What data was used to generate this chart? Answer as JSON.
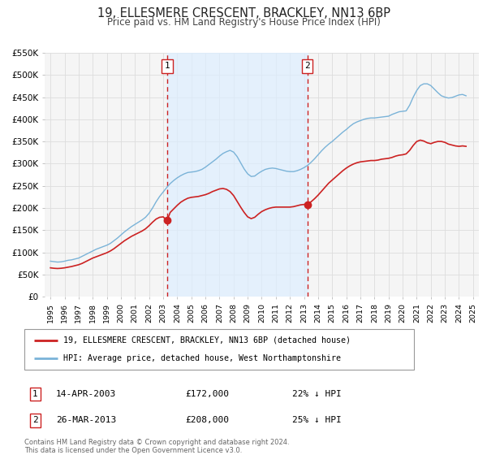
{
  "title": "19, ELLESMERE CRESCENT, BRACKLEY, NN13 6BP",
  "subtitle": "Price paid vs. HM Land Registry's House Price Index (HPI)",
  "hpi_color": "#7ab3d8",
  "price_color": "#cc2222",
  "bg_color": "#ffffff",
  "plot_bg_color": "#f5f5f5",
  "grid_color": "#dddddd",
  "span_color": "#ddeeff",
  "ylim": [
    0,
    550000
  ],
  "yticks": [
    0,
    50000,
    100000,
    150000,
    200000,
    250000,
    300000,
    350000,
    400000,
    450000,
    500000,
    550000
  ],
  "ytick_labels": [
    "£0",
    "£50K",
    "£100K",
    "£150K",
    "£200K",
    "£250K",
    "£300K",
    "£350K",
    "£400K",
    "£450K",
    "£500K",
    "£550K"
  ],
  "xlim_start": 1994.6,
  "xlim_end": 2025.4,
  "transaction1": {
    "label": "1",
    "date": "14-APR-2003",
    "price": 172000,
    "year": 2003.28,
    "hpi_pct": "22%"
  },
  "transaction2": {
    "label": "2",
    "date": "26-MAR-2013",
    "price": 208000,
    "year": 2013.23,
    "hpi_pct": "25%"
  },
  "legend_label1": "19, ELLESMERE CRESCENT, BRACKLEY, NN13 6BP (detached house)",
  "legend_label2": "HPI: Average price, detached house, West Northamptonshire",
  "footer": "Contains HM Land Registry data © Crown copyright and database right 2024.\nThis data is licensed under the Open Government Licence v3.0.",
  "hpi_data": [
    [
      1995.0,
      80000
    ],
    [
      1995.25,
      79000
    ],
    [
      1995.5,
      78000
    ],
    [
      1995.75,
      78500
    ],
    [
      1996.0,
      80000
    ],
    [
      1996.25,
      82000
    ],
    [
      1996.5,
      83000
    ],
    [
      1996.75,
      85000
    ],
    [
      1997.0,
      87000
    ],
    [
      1997.25,
      91000
    ],
    [
      1997.5,
      95000
    ],
    [
      1997.75,
      99000
    ],
    [
      1998.0,
      103000
    ],
    [
      1998.25,
      107000
    ],
    [
      1998.5,
      110000
    ],
    [
      1998.75,
      113000
    ],
    [
      1999.0,
      116000
    ],
    [
      1999.25,
      120000
    ],
    [
      1999.5,
      126000
    ],
    [
      1999.75,
      132000
    ],
    [
      2000.0,
      139000
    ],
    [
      2000.25,
      146000
    ],
    [
      2000.5,
      152000
    ],
    [
      2000.75,
      158000
    ],
    [
      2001.0,
      163000
    ],
    [
      2001.25,
      168000
    ],
    [
      2001.5,
      173000
    ],
    [
      2001.75,
      179000
    ],
    [
      2002.0,
      188000
    ],
    [
      2002.25,
      200000
    ],
    [
      2002.5,
      214000
    ],
    [
      2002.75,
      226000
    ],
    [
      2003.0,
      236000
    ],
    [
      2003.25,
      246000
    ],
    [
      2003.5,
      255000
    ],
    [
      2003.75,
      262000
    ],
    [
      2004.0,
      268000
    ],
    [
      2004.25,
      273000
    ],
    [
      2004.5,
      277000
    ],
    [
      2004.75,
      280000
    ],
    [
      2005.0,
      281000
    ],
    [
      2005.25,
      282000
    ],
    [
      2005.5,
      284000
    ],
    [
      2005.75,
      287000
    ],
    [
      2006.0,
      292000
    ],
    [
      2006.25,
      298000
    ],
    [
      2006.5,
      304000
    ],
    [
      2006.75,
      310000
    ],
    [
      2007.0,
      317000
    ],
    [
      2007.25,
      323000
    ],
    [
      2007.5,
      327000
    ],
    [
      2007.75,
      330000
    ],
    [
      2008.0,
      326000
    ],
    [
      2008.25,
      316000
    ],
    [
      2008.5,
      302000
    ],
    [
      2008.75,
      288000
    ],
    [
      2009.0,
      277000
    ],
    [
      2009.25,
      271000
    ],
    [
      2009.5,
      272000
    ],
    [
      2009.75,
      278000
    ],
    [
      2010.0,
      283000
    ],
    [
      2010.25,
      287000
    ],
    [
      2010.5,
      289000
    ],
    [
      2010.75,
      290000
    ],
    [
      2011.0,
      289000
    ],
    [
      2011.25,
      287000
    ],
    [
      2011.5,
      285000
    ],
    [
      2011.75,
      283000
    ],
    [
      2012.0,
      282000
    ],
    [
      2012.25,
      282000
    ],
    [
      2012.5,
      284000
    ],
    [
      2012.75,
      287000
    ],
    [
      2013.0,
      291000
    ],
    [
      2013.25,
      296000
    ],
    [
      2013.5,
      303000
    ],
    [
      2013.75,
      311000
    ],
    [
      2014.0,
      320000
    ],
    [
      2014.25,
      329000
    ],
    [
      2014.5,
      337000
    ],
    [
      2014.75,
      344000
    ],
    [
      2015.0,
      350000
    ],
    [
      2015.25,
      357000
    ],
    [
      2015.5,
      364000
    ],
    [
      2015.75,
      371000
    ],
    [
      2016.0,
      377000
    ],
    [
      2016.25,
      384000
    ],
    [
      2016.5,
      390000
    ],
    [
      2016.75,
      394000
    ],
    [
      2017.0,
      397000
    ],
    [
      2017.25,
      400000
    ],
    [
      2017.5,
      402000
    ],
    [
      2017.75,
      403000
    ],
    [
      2018.0,
      403000
    ],
    [
      2018.25,
      404000
    ],
    [
      2018.5,
      405000
    ],
    [
      2018.75,
      406000
    ],
    [
      2019.0,
      407000
    ],
    [
      2019.25,
      411000
    ],
    [
      2019.5,
      414000
    ],
    [
      2019.75,
      417000
    ],
    [
      2020.0,
      418000
    ],
    [
      2020.25,
      419000
    ],
    [
      2020.5,
      432000
    ],
    [
      2020.75,
      450000
    ],
    [
      2021.0,
      465000
    ],
    [
      2021.25,
      476000
    ],
    [
      2021.5,
      480000
    ],
    [
      2021.75,
      480000
    ],
    [
      2022.0,
      476000
    ],
    [
      2022.25,
      468000
    ],
    [
      2022.5,
      460000
    ],
    [
      2022.75,
      453000
    ],
    [
      2023.0,
      450000
    ],
    [
      2023.25,
      448000
    ],
    [
      2023.5,
      449000
    ],
    [
      2023.75,
      452000
    ],
    [
      2024.0,
      455000
    ],
    [
      2024.25,
      456000
    ],
    [
      2024.5,
      453000
    ]
  ],
  "price_data": [
    [
      1995.0,
      65000
    ],
    [
      1995.25,
      64000
    ],
    [
      1995.5,
      63500
    ],
    [
      1995.75,
      64000
    ],
    [
      1996.0,
      65000
    ],
    [
      1996.25,
      66500
    ],
    [
      1996.5,
      68000
    ],
    [
      1996.75,
      70000
    ],
    [
      1997.0,
      72000
    ],
    [
      1997.25,
      75000
    ],
    [
      1997.5,
      79000
    ],
    [
      1997.75,
      83000
    ],
    [
      1998.0,
      87000
    ],
    [
      1998.25,
      90000
    ],
    [
      1998.5,
      93000
    ],
    [
      1998.75,
      96000
    ],
    [
      1999.0,
      99000
    ],
    [
      1999.25,
      103000
    ],
    [
      1999.5,
      108000
    ],
    [
      1999.75,
      114000
    ],
    [
      2000.0,
      120000
    ],
    [
      2000.25,
      126000
    ],
    [
      2000.5,
      131000
    ],
    [
      2000.75,
      136000
    ],
    [
      2001.0,
      140000
    ],
    [
      2001.25,
      144000
    ],
    [
      2001.5,
      148000
    ],
    [
      2001.75,
      153000
    ],
    [
      2002.0,
      160000
    ],
    [
      2002.25,
      168000
    ],
    [
      2002.5,
      175000
    ],
    [
      2002.75,
      179000
    ],
    [
      2003.0,
      180000
    ],
    [
      2003.28,
      172000
    ],
    [
      2003.5,
      190000
    ],
    [
      2003.75,
      198000
    ],
    [
      2004.0,
      206000
    ],
    [
      2004.25,
      213000
    ],
    [
      2004.5,
      218000
    ],
    [
      2004.75,
      222000
    ],
    [
      2005.0,
      224000
    ],
    [
      2005.25,
      225000
    ],
    [
      2005.5,
      226000
    ],
    [
      2005.75,
      228000
    ],
    [
      2006.0,
      230000
    ],
    [
      2006.25,
      233000
    ],
    [
      2006.5,
      237000
    ],
    [
      2006.75,
      240000
    ],
    [
      2007.0,
      243000
    ],
    [
      2007.25,
      244000
    ],
    [
      2007.5,
      242000
    ],
    [
      2007.75,
      237000
    ],
    [
      2008.0,
      228000
    ],
    [
      2008.25,
      215000
    ],
    [
      2008.5,
      202000
    ],
    [
      2008.75,
      190000
    ],
    [
      2009.0,
      180000
    ],
    [
      2009.25,
      176000
    ],
    [
      2009.5,
      179000
    ],
    [
      2009.75,
      186000
    ],
    [
      2010.0,
      192000
    ],
    [
      2010.25,
      196000
    ],
    [
      2010.5,
      199000
    ],
    [
      2010.75,
      201000
    ],
    [
      2011.0,
      202000
    ],
    [
      2011.25,
      202000
    ],
    [
      2011.5,
      202000
    ],
    [
      2011.75,
      202000
    ],
    [
      2012.0,
      202000
    ],
    [
      2012.25,
      203000
    ],
    [
      2012.5,
      205000
    ],
    [
      2012.75,
      207000
    ],
    [
      2013.0,
      208000
    ],
    [
      2013.23,
      208000
    ],
    [
      2013.5,
      214000
    ],
    [
      2013.75,
      221000
    ],
    [
      2014.0,
      229000
    ],
    [
      2014.25,
      238000
    ],
    [
      2014.5,
      247000
    ],
    [
      2014.75,
      256000
    ],
    [
      2015.0,
      263000
    ],
    [
      2015.25,
      270000
    ],
    [
      2015.5,
      277000
    ],
    [
      2015.75,
      284000
    ],
    [
      2016.0,
      290000
    ],
    [
      2016.25,
      295000
    ],
    [
      2016.5,
      299000
    ],
    [
      2016.75,
      302000
    ],
    [
      2017.0,
      304000
    ],
    [
      2017.25,
      305000
    ],
    [
      2017.5,
      306000
    ],
    [
      2017.75,
      307000
    ],
    [
      2018.0,
      307000
    ],
    [
      2018.25,
      308000
    ],
    [
      2018.5,
      310000
    ],
    [
      2018.75,
      311000
    ],
    [
      2019.0,
      312000
    ],
    [
      2019.25,
      314000
    ],
    [
      2019.5,
      317000
    ],
    [
      2019.75,
      319000
    ],
    [
      2020.0,
      320000
    ],
    [
      2020.25,
      322000
    ],
    [
      2020.5,
      330000
    ],
    [
      2020.75,
      341000
    ],
    [
      2021.0,
      350000
    ],
    [
      2021.25,
      353000
    ],
    [
      2021.5,
      351000
    ],
    [
      2021.75,
      347000
    ],
    [
      2022.0,
      345000
    ],
    [
      2022.25,
      348000
    ],
    [
      2022.5,
      350000
    ],
    [
      2022.75,
      350000
    ],
    [
      2023.0,
      348000
    ],
    [
      2023.25,
      344000
    ],
    [
      2023.5,
      342000
    ],
    [
      2023.75,
      340000
    ],
    [
      2024.0,
      339000
    ],
    [
      2024.25,
      340000
    ],
    [
      2024.5,
      339000
    ]
  ]
}
